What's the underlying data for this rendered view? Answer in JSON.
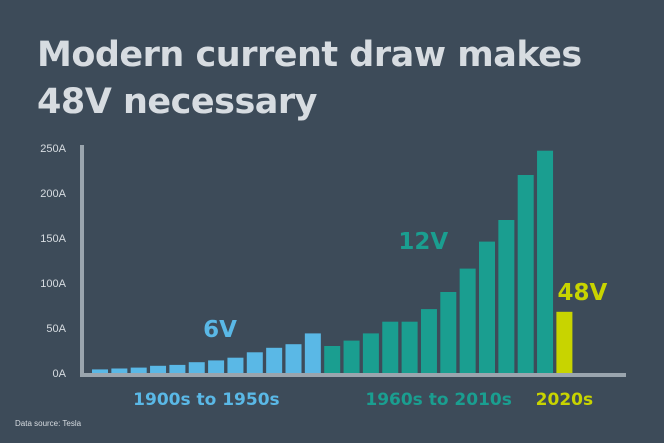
{
  "title_lines": [
    "Modern current draw makes",
    "48V necessary"
  ],
  "source_note": "Data source: Tesla",
  "colors": {
    "background": "#3d4b59",
    "era_6v": "#5ab8e6",
    "era_12v": "#1a9e90",
    "era_48v": "#c8d400",
    "axis": "#9aa5ae",
    "text": "#d7dce1"
  },
  "chart_data": {
    "type": "bar",
    "title": "Modern current draw makes 48V necessary",
    "xlabel": "",
    "ylabel": "",
    "ylim": [
      0,
      250
    ],
    "y_ticks": [
      "0A",
      "50A",
      "100A",
      "150A",
      "200A",
      "250A"
    ],
    "grid": false,
    "groups": [
      {
        "name": "6V",
        "label": "1900s to 1950s",
        "color": "#5ab8e6",
        "values": [
          4,
          5,
          6,
          8,
          9,
          12,
          14,
          17,
          23,
          28,
          32,
          44
        ]
      },
      {
        "name": "12V",
        "label": "1960s to 2010s",
        "color": "#1a9e90",
        "values": [
          30,
          36,
          44,
          57,
          57,
          71,
          90,
          116,
          146,
          170,
          220,
          247
        ]
      },
      {
        "name": "48V",
        "label": "2020s",
        "color": "#c8d400",
        "values": [
          68
        ]
      }
    ]
  }
}
